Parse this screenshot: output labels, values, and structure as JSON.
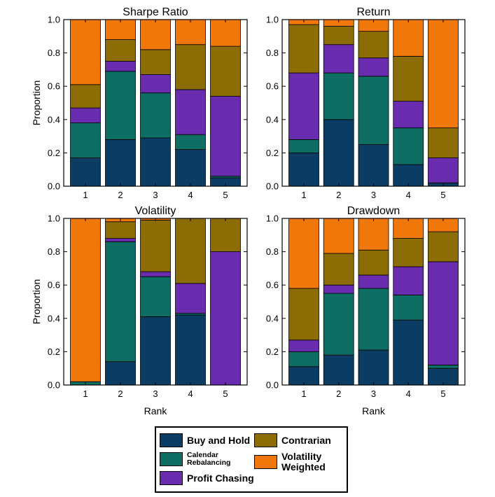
{
  "chart_data": [
    {
      "type": "bar",
      "stacked": true,
      "title": "Sharpe Ratio",
      "xlabel": "",
      "ylabel": "Proportion",
      "categories": [
        "1",
        "2",
        "3",
        "4",
        "5"
      ],
      "ylim": [
        0,
        1.0
      ],
      "yticks": [
        "0.0",
        "0.2",
        "0.4",
        "0.6",
        "0.8",
        "1.0"
      ],
      "series": [
        {
          "name": "Buy and Hold",
          "values": [
            0.17,
            0.28,
            0.29,
            0.22,
            0.05
          ]
        },
        {
          "name": "Calendar Rebalancing",
          "values": [
            0.21,
            0.41,
            0.27,
            0.09,
            0.01
          ]
        },
        {
          "name": "Profit Chasing",
          "values": [
            0.09,
            0.06,
            0.11,
            0.27,
            0.48
          ]
        },
        {
          "name": "Contrarian",
          "values": [
            0.14,
            0.13,
            0.15,
            0.27,
            0.3
          ]
        },
        {
          "name": "Volatility Weighted",
          "values": [
            0.39,
            0.12,
            0.18,
            0.15,
            0.16
          ]
        }
      ]
    },
    {
      "type": "bar",
      "stacked": true,
      "title": "Return",
      "xlabel": "",
      "ylabel": "",
      "categories": [
        "1",
        "2",
        "3",
        "4",
        "5"
      ],
      "ylim": [
        0,
        1.0
      ],
      "yticks": [
        "0.0",
        "0.2",
        "0.4",
        "0.6",
        "0.8",
        "1.0"
      ],
      "series": [
        {
          "name": "Buy and Hold",
          "values": [
            0.2,
            0.4,
            0.25,
            0.13,
            0.02
          ]
        },
        {
          "name": "Calendar Rebalancing",
          "values": [
            0.08,
            0.28,
            0.41,
            0.22,
            0.0
          ]
        },
        {
          "name": "Profit Chasing",
          "values": [
            0.4,
            0.17,
            0.11,
            0.16,
            0.15
          ]
        },
        {
          "name": "Contrarian",
          "values": [
            0.29,
            0.11,
            0.16,
            0.27,
            0.18
          ]
        },
        {
          "name": "Volatility Weighted",
          "values": [
            0.03,
            0.04,
            0.07,
            0.22,
            0.65
          ]
        }
      ]
    },
    {
      "type": "bar",
      "stacked": true,
      "title": "Volatility",
      "xlabel": "Rank",
      "ylabel": "Proportion",
      "categories": [
        "1",
        "2",
        "3",
        "4",
        "5"
      ],
      "ylim": [
        0,
        1.0
      ],
      "yticks": [
        "0.0",
        "0.2",
        "0.4",
        "0.6",
        "0.8",
        "1.0"
      ],
      "series": [
        {
          "name": "Buy and Hold",
          "values": [
            0.0,
            0.14,
            0.41,
            0.42,
            0.0
          ]
        },
        {
          "name": "Calendar Rebalancing",
          "values": [
            0.02,
            0.72,
            0.24,
            0.01,
            0.0
          ]
        },
        {
          "name": "Profit Chasing",
          "values": [
            0.0,
            0.02,
            0.03,
            0.18,
            0.8
          ]
        },
        {
          "name": "Contrarian",
          "values": [
            0.0,
            0.1,
            0.31,
            0.39,
            0.2
          ]
        },
        {
          "name": "Volatility Weighted",
          "values": [
            0.98,
            0.02,
            0.01,
            0.0,
            0.0
          ]
        }
      ]
    },
    {
      "type": "bar",
      "stacked": true,
      "title": "Drawdown",
      "xlabel": "Rank",
      "ylabel": "",
      "categories": [
        "1",
        "2",
        "3",
        "4",
        "5"
      ],
      "ylim": [
        0,
        1.0
      ],
      "yticks": [
        "0.0",
        "0.2",
        "0.4",
        "0.6",
        "0.8",
        "1.0"
      ],
      "series": [
        {
          "name": "Buy and Hold",
          "values": [
            0.11,
            0.18,
            0.21,
            0.39,
            0.1
          ]
        },
        {
          "name": "Calendar Rebalancing",
          "values": [
            0.09,
            0.37,
            0.37,
            0.15,
            0.02
          ]
        },
        {
          "name": "Profit Chasing",
          "values": [
            0.07,
            0.05,
            0.08,
            0.17,
            0.62
          ]
        },
        {
          "name": "Contrarian",
          "values": [
            0.31,
            0.19,
            0.15,
            0.17,
            0.18
          ]
        },
        {
          "name": "Volatility Weighted",
          "values": [
            0.42,
            0.21,
            0.19,
            0.12,
            0.08
          ]
        }
      ]
    }
  ],
  "colors": {
    "Buy and Hold": "#0b3c64",
    "Calendar Rebalancing": "#0e6e63",
    "Profit Chasing": "#6a2cae",
    "Contrarian": "#8c6c04",
    "Volatility Weighted": "#f0780a"
  },
  "legend": {
    "items": [
      {
        "label": "Buy and Hold",
        "icon": "navy-swatch"
      },
      {
        "label": "Contrarian",
        "icon": "olive-swatch"
      },
      {
        "label": "Calendar Rebalancing",
        "icon": "teal-swatch"
      },
      {
        "label": "Volatility Weighted",
        "icon": "orange-swatch"
      },
      {
        "label": "Profit Chasing",
        "icon": "purple-swatch"
      }
    ]
  }
}
